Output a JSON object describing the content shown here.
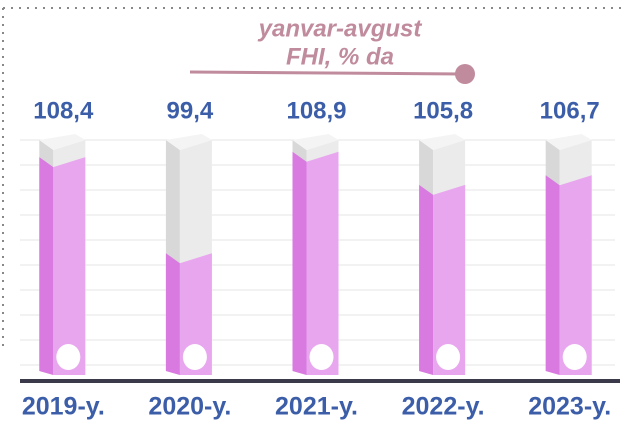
{
  "chart_data": {
    "type": "bar",
    "title": "yanvar-avgust",
    "subtitle": "FHI, % da",
    "categories": [
      "2019-y.",
      "2020-y.",
      "2021-y.",
      "2022-y.",
      "2023-y."
    ],
    "values": [
      108.4,
      99.4,
      108.9,
      105.8,
      106.7
    ],
    "value_labels": [
      "108,4",
      "99,4",
      "108,9",
      "105,8",
      "106,7"
    ],
    "color": "#e8a6ef",
    "ylim": [
      88,
      110
    ]
  }
}
